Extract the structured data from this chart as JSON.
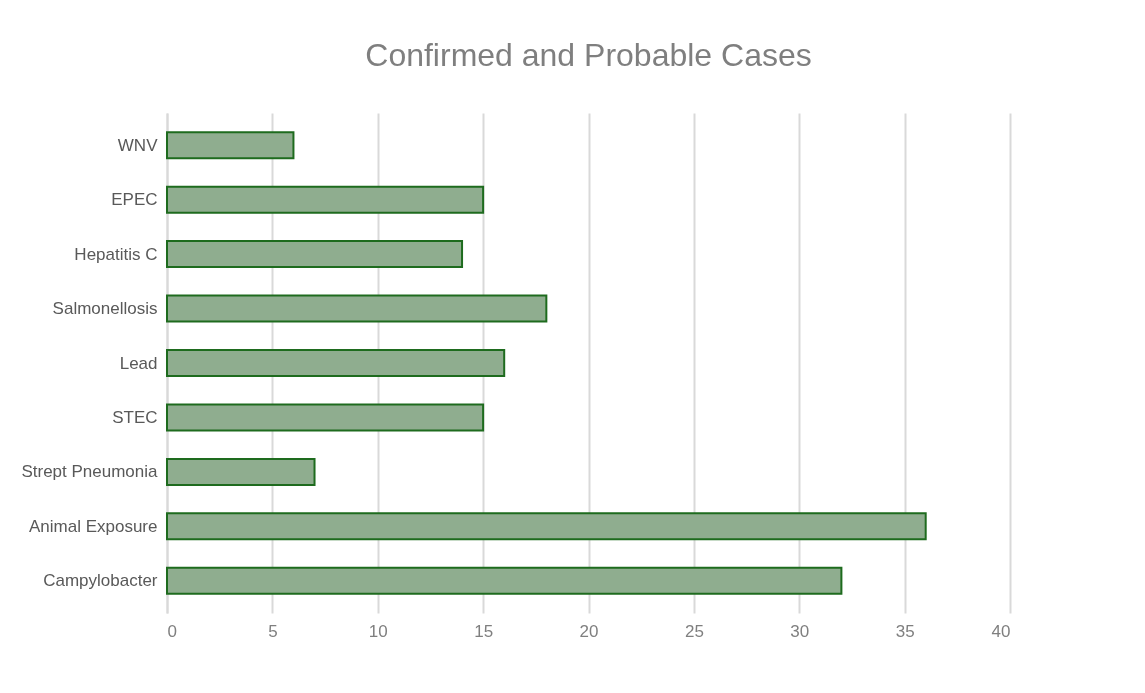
{
  "chart_data": {
    "type": "bar",
    "orientation": "horizontal",
    "title": "Confirmed and Probable Cases",
    "categories": [
      "WNV",
      "EPEC",
      "Hepatitis C",
      "Salmonellosis",
      "Lead",
      "STEC",
      "Strept Pneumonia",
      "Animal Exposure",
      "Campylobacter"
    ],
    "values": [
      6,
      15,
      14,
      18,
      16,
      15,
      7,
      36,
      32
    ],
    "color": "#8fad8f",
    "xlim": [
      0,
      40
    ],
    "xticks": [
      0,
      5,
      10,
      15,
      20,
      25,
      30,
      35,
      40
    ],
    "grid": "x"
  }
}
